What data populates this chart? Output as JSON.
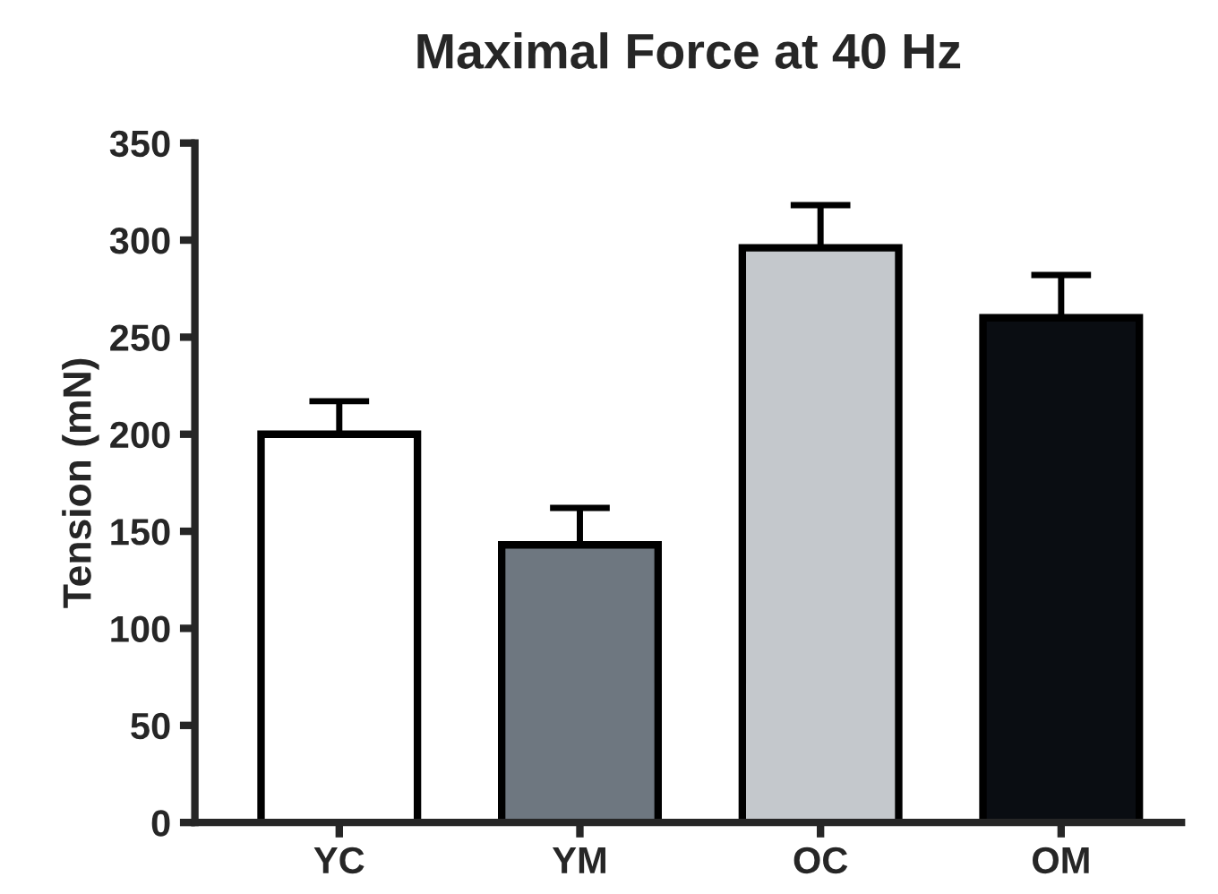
{
  "chart_data": {
    "type": "bar",
    "title": "Maximal Force at 40 Hz",
    "ylabel": "Tension (mN)",
    "categories": [
      "YC",
      "YM",
      "OC",
      "OM"
    ],
    "values": [
      200,
      143,
      296,
      260
    ],
    "errors": [
      17,
      19,
      22,
      22
    ],
    "colors": [
      "#ffffff",
      "#6e7780",
      "#c4c8cc",
      "#0a0d12"
    ],
    "ylim": [
      0,
      350
    ],
    "yticks": [
      0,
      50,
      100,
      150,
      200,
      250,
      300,
      350
    ],
    "grid": false,
    "legend": false
  }
}
